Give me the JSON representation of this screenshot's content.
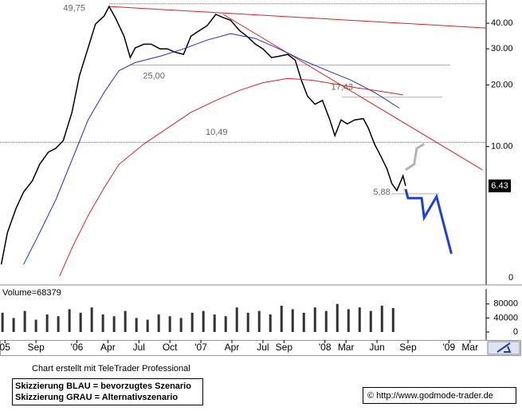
{
  "chart_data": [
    {
      "type": "line",
      "log_scale": true,
      "grid": false,
      "xlim": [
        2005.38,
        2009.3
      ],
      "ylim": [
        2.29,
        50.1
      ],
      "yticks": [
        {
          "value": 40,
          "label": "40.00"
        },
        {
          "value": 30,
          "label": "30.00"
        },
        {
          "value": 20,
          "label": "20.00"
        },
        {
          "value": 10,
          "label": "10.00"
        }
      ],
      "bottom_label": "0",
      "last_price": 6.43,
      "xticks": [
        {
          "value": 2005.42,
          "label": "05"
        },
        {
          "value": 2005.67,
          "label": "Sep"
        },
        {
          "value": 2006.0,
          "label": "'06"
        },
        {
          "value": 2006.25,
          "label": "Apr"
        },
        {
          "value": 2006.5,
          "label": "Jul"
        },
        {
          "value": 2006.75,
          "label": "Oct"
        },
        {
          "value": 2007.0,
          "label": "'07"
        },
        {
          "value": 2007.25,
          "label": "Apr"
        },
        {
          "value": 2007.5,
          "label": "Jul"
        },
        {
          "value": 2007.67,
          "label": "Sep"
        },
        {
          "value": 2008.0,
          "label": "'08"
        },
        {
          "value": 2008.17,
          "label": "Mar"
        },
        {
          "value": 2008.42,
          "label": "Jun"
        },
        {
          "value": 2008.67,
          "label": "Sep"
        },
        {
          "value": 2009.0,
          "label": "'09"
        },
        {
          "value": 2009.17,
          "label": "Mar"
        }
      ],
      "series": [
        {
          "color": "#000000",
          "x": [
            2005.39,
            2005.44,
            2005.51,
            2005.57,
            2005.64,
            2005.7,
            2005.77,
            2005.83,
            2005.89,
            2005.96,
            2006.02,
            2006.09,
            2006.15,
            2006.22,
            2006.26,
            2006.31,
            2006.38,
            2006.43,
            2006.47,
            2006.54,
            2006.6,
            2006.67,
            2006.73,
            2006.79,
            2006.86,
            2006.92,
            2006.99,
            2007.05,
            2007.12,
            2007.18,
            2007.24,
            2007.31,
            2007.37,
            2007.44,
            2007.5,
            2007.57,
            2007.63,
            2007.7,
            2007.76,
            2007.81,
            2007.86,
            2007.92,
            2007.98,
            2008.04,
            2008.08,
            2008.13,
            2008.18,
            2008.24,
            2008.31,
            2008.35,
            2008.4,
            2008.45,
            2008.5,
            2008.54,
            2008.58,
            2008.63,
            2008.65
          ],
          "values": [
            2.66,
            3.8,
            5.0,
            6.0,
            6.8,
            8.2,
            9.4,
            9.8,
            10.7,
            14.7,
            22.1,
            30.3,
            39.6,
            43.4,
            48.3,
            42.6,
            34.6,
            27.2,
            30.3,
            31.6,
            31.6,
            30.0,
            30.0,
            28.9,
            28.2,
            34.6,
            36.9,
            38.9,
            44.2,
            42.6,
            41.4,
            36.9,
            34.6,
            31.6,
            30.0,
            27.2,
            27.6,
            28.2,
            26.4,
            21.1,
            17.6,
            16.1,
            16.8,
            13.5,
            11.3,
            13.5,
            12.9,
            13.5,
            13.7,
            12.3,
            10.3,
            9.0,
            7.8,
            6.6,
            6.1,
            7.2,
            6.43
          ]
        },
        {
          "color": "#1f2fd0",
          "x": [
            2005.57,
            2005.7,
            2005.83,
            2005.96,
            2006.09,
            2006.22,
            2006.34,
            2006.47,
            2006.67,
            2006.86,
            2007.05,
            2007.24,
            2007.44,
            2007.63,
            2007.82,
            2008.02,
            2008.21,
            2008.4,
            2008.6
          ],
          "values": [
            2.66,
            3.8,
            5.5,
            8.6,
            13.5,
            18.4,
            23.5,
            25.7,
            27.6,
            30.0,
            33.1,
            35.6,
            33.7,
            30.0,
            26.4,
            23.5,
            21.1,
            18.4,
            15.4
          ]
        },
        {
          "color": "#e02020",
          "x": [
            2005.86,
            2005.96,
            2006.09,
            2006.22,
            2006.34,
            2006.54,
            2006.73,
            2006.92,
            2007.12,
            2007.31,
            2007.5,
            2007.7,
            2007.89,
            2008.08,
            2008.27,
            2008.4,
            2008.63
          ],
          "values": [
            2.33,
            3.2,
            4.6,
            6.3,
            8.2,
            10.3,
            12.3,
            14.7,
            16.8,
            18.8,
            20.5,
            21.5,
            21.1,
            20.2,
            19.3,
            18.8,
            17.9
          ]
        }
      ],
      "trend_lines": [
        {
          "color": "#e02020",
          "x": [
            2006.26,
            2009.3
          ],
          "values": [
            48.3,
            37.9
          ]
        },
        {
          "color": "#e02020",
          "x": [
            2007.18,
            2009.27
          ],
          "values": [
            44.2,
            7.7
          ]
        }
      ],
      "levels": [
        {
          "value": 49.75,
          "label": "49,75",
          "x": [
            2006.26,
            2009.3
          ]
        },
        {
          "value": 25,
          "label": "25,00",
          "x": [
            2006.43,
            2009.01
          ]
        },
        {
          "value": 17.43,
          "label": "17,43",
          "x": [
            2008.14,
            2008.95
          ]
        },
        {
          "value": 10.49,
          "label": "10,49",
          "x": [
            2005.38,
            2009.3
          ]
        },
        {
          "value": 5.88,
          "label": "5,88",
          "x": [
            2008.54,
            2008.92
          ]
        }
      ],
      "scenarios": [
        {
          "color": "#b4b4b4",
          "x": [
            2008.65,
            2008.72,
            2008.74,
            2008.8
          ],
          "values": [
            7.7,
            8.2,
            9.8,
            10.3
          ]
        },
        {
          "color": "#1f3fd8",
          "x": [
            2008.65,
            2008.67,
            2008.78,
            2008.8,
            2008.9,
            2009.02
          ],
          "values": [
            6.2,
            5.6,
            5.6,
            4.5,
            5.7,
            3.0
          ]
        }
      ]
    },
    {
      "type": "bar",
      "title": "Volume=68379",
      "color": "#333333",
      "xlim": [
        2005.38,
        2009.3
      ],
      "ylim": [
        0,
        116000
      ],
      "yticks": [
        80000,
        40000,
        0
      ],
      "x": [
        2005.4,
        2005.49,
        2005.58,
        2005.67,
        2005.76,
        2005.85,
        2005.94,
        2006.03,
        2006.12,
        2006.21,
        2006.3,
        2006.39,
        2006.48,
        2006.57,
        2006.66,
        2006.75,
        2006.84,
        2006.93,
        2007.02,
        2007.11,
        2007.2,
        2007.29,
        2007.38,
        2007.47,
        2007.56,
        2007.65,
        2007.74,
        2007.83,
        2007.92,
        2008.01,
        2008.1,
        2008.19,
        2008.28,
        2008.37,
        2008.46,
        2008.55
      ],
      "values": [
        55000,
        40000,
        60000,
        35000,
        50000,
        45000,
        65000,
        55000,
        70000,
        50000,
        45000,
        60000,
        40000,
        35000,
        50000,
        45000,
        40000,
        55000,
        60000,
        50000,
        45000,
        70000,
        55000,
        60000,
        50000,
        75000,
        65000,
        55000,
        70000,
        60000,
        80000,
        65000,
        70000,
        60000,
        75000,
        68379
      ]
    }
  ],
  "footer": {
    "credit": "Chart erstellt mit TeleTrader Professional",
    "legend_lines": [
      "Skizzierung BLAU = bevorzugtes Szenario",
      "Skizzierung GRAU = Alternativszenario"
    ],
    "source": "© http://www.godmode-trader.de"
  }
}
